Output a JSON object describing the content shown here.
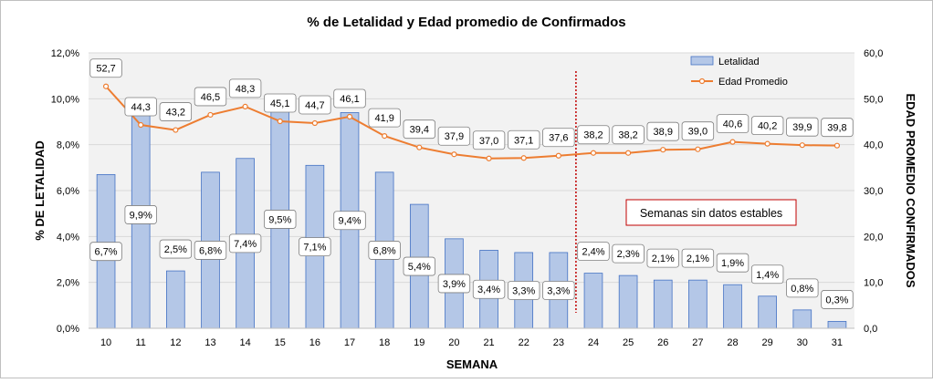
{
  "chart_data": {
    "type": "bar+line",
    "title": "% de Letalidad y Edad promedio de Confirmados",
    "xlabel": "SEMANA",
    "ylabel_left": "% DE LETALIDAD",
    "ylabel_right": "EDAD PROMEDIO CONFIRMADOS",
    "categories": [
      "10",
      "11",
      "12",
      "13",
      "14",
      "15",
      "16",
      "17",
      "18",
      "19",
      "20",
      "21",
      "22",
      "23",
      "24",
      "25",
      "26",
      "27",
      "28",
      "29",
      "30",
      "31"
    ],
    "ylim_left": [
      0,
      12
    ],
    "ylim_right": [
      0,
      60
    ],
    "yticks_left": [
      "0,0%",
      "2,0%",
      "4,0%",
      "6,0%",
      "8,0%",
      "10,0%",
      "12,0%"
    ],
    "yticks_right": [
      "0,0",
      "10,0",
      "20,0",
      "30,0",
      "40,0",
      "50,0",
      "60,0"
    ],
    "series": [
      {
        "name": "Letalidad",
        "type": "bar",
        "axis": "left",
        "color": "#b4c7e7",
        "values": [
          6.7,
          9.9,
          2.5,
          6.8,
          7.4,
          9.5,
          7.1,
          9.4,
          6.8,
          5.4,
          3.9,
          3.4,
          3.3,
          3.3,
          2.4,
          2.3,
          2.1,
          2.1,
          1.9,
          1.4,
          0.8,
          0.3
        ],
        "labels": [
          "6,7%",
          "9,9%",
          "2,5%",
          "6,8%",
          "7,4%",
          "9,5%",
          "7,1%",
          "9,4%",
          "6,8%",
          "5,4%",
          "3,9%",
          "3,4%",
          "3,3%",
          "3,3%",
          "2,4%",
          "2,3%",
          "2,1%",
          "2,1%",
          "1,9%",
          "1,4%",
          "0,8%",
          "0,3%"
        ]
      },
      {
        "name": "Edad Promedio",
        "type": "line",
        "axis": "right",
        "color": "#ed7d31",
        "values": [
          52.7,
          44.3,
          43.2,
          46.5,
          48.3,
          45.1,
          44.7,
          46.1,
          41.9,
          39.4,
          37.9,
          37.0,
          37.1,
          37.6,
          38.2,
          38.2,
          38.9,
          39.0,
          40.6,
          40.2,
          39.9,
          39.8
        ],
        "labels": [
          "52,7",
          "44,3",
          "43,2",
          "46,5",
          "48,3",
          "45,1",
          "44,7",
          "46,1",
          "41,9",
          "39,4",
          "37,9",
          "37,0",
          "37,1",
          "37,6",
          "38,2",
          "38,2",
          "38,9",
          "39,0",
          "40,6",
          "40,2",
          "39,9",
          "39,8"
        ]
      }
    ],
    "legend": [
      {
        "name": "Letalidad",
        "symbol": "bar"
      },
      {
        "name": "Edad Promedio",
        "symbol": "line-marker"
      }
    ],
    "legend_position": "top-right",
    "annotation": {
      "text": "Semanas sin datos estables",
      "after_category": "23"
    },
    "colors": {
      "plot_bg": "#f2f2f2",
      "grid": "#d9d9d9",
      "bar_border": "#4472c4",
      "divider": "#c00000",
      "annotation_border": "#c00000"
    }
  }
}
